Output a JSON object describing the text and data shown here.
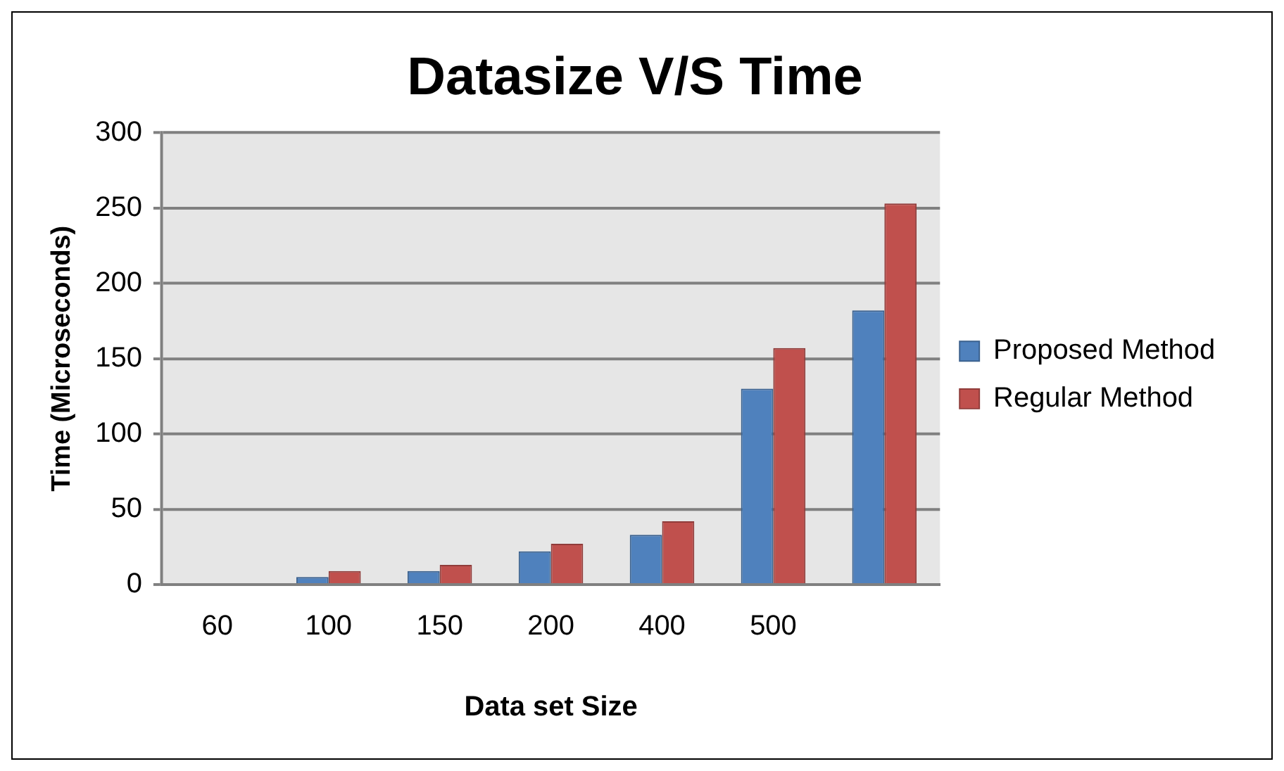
{
  "chart_data": {
    "type": "bar",
    "title": "Datasize V/S Time",
    "xlabel": "Data set Size",
    "ylabel": "Time (Microseconds)",
    "categories": [
      "60",
      "100",
      "150",
      "200",
      "400",
      "500",
      null
    ],
    "series": [
      {
        "name": "Proposed Method",
        "color": "#4f81bd",
        "values": [
          0,
          5,
          9,
          22,
          33,
          130,
          182
        ]
      },
      {
        "name": "Regular Method",
        "color": "#c0504d",
        "values": [
          0,
          9,
          13,
          27,
          42,
          157,
          253
        ]
      }
    ],
    "ylim": [
      0,
      300
    ],
    "yticks": [
      0,
      50,
      100,
      150,
      200,
      250,
      300
    ],
    "grid": "y",
    "legend": "right"
  }
}
